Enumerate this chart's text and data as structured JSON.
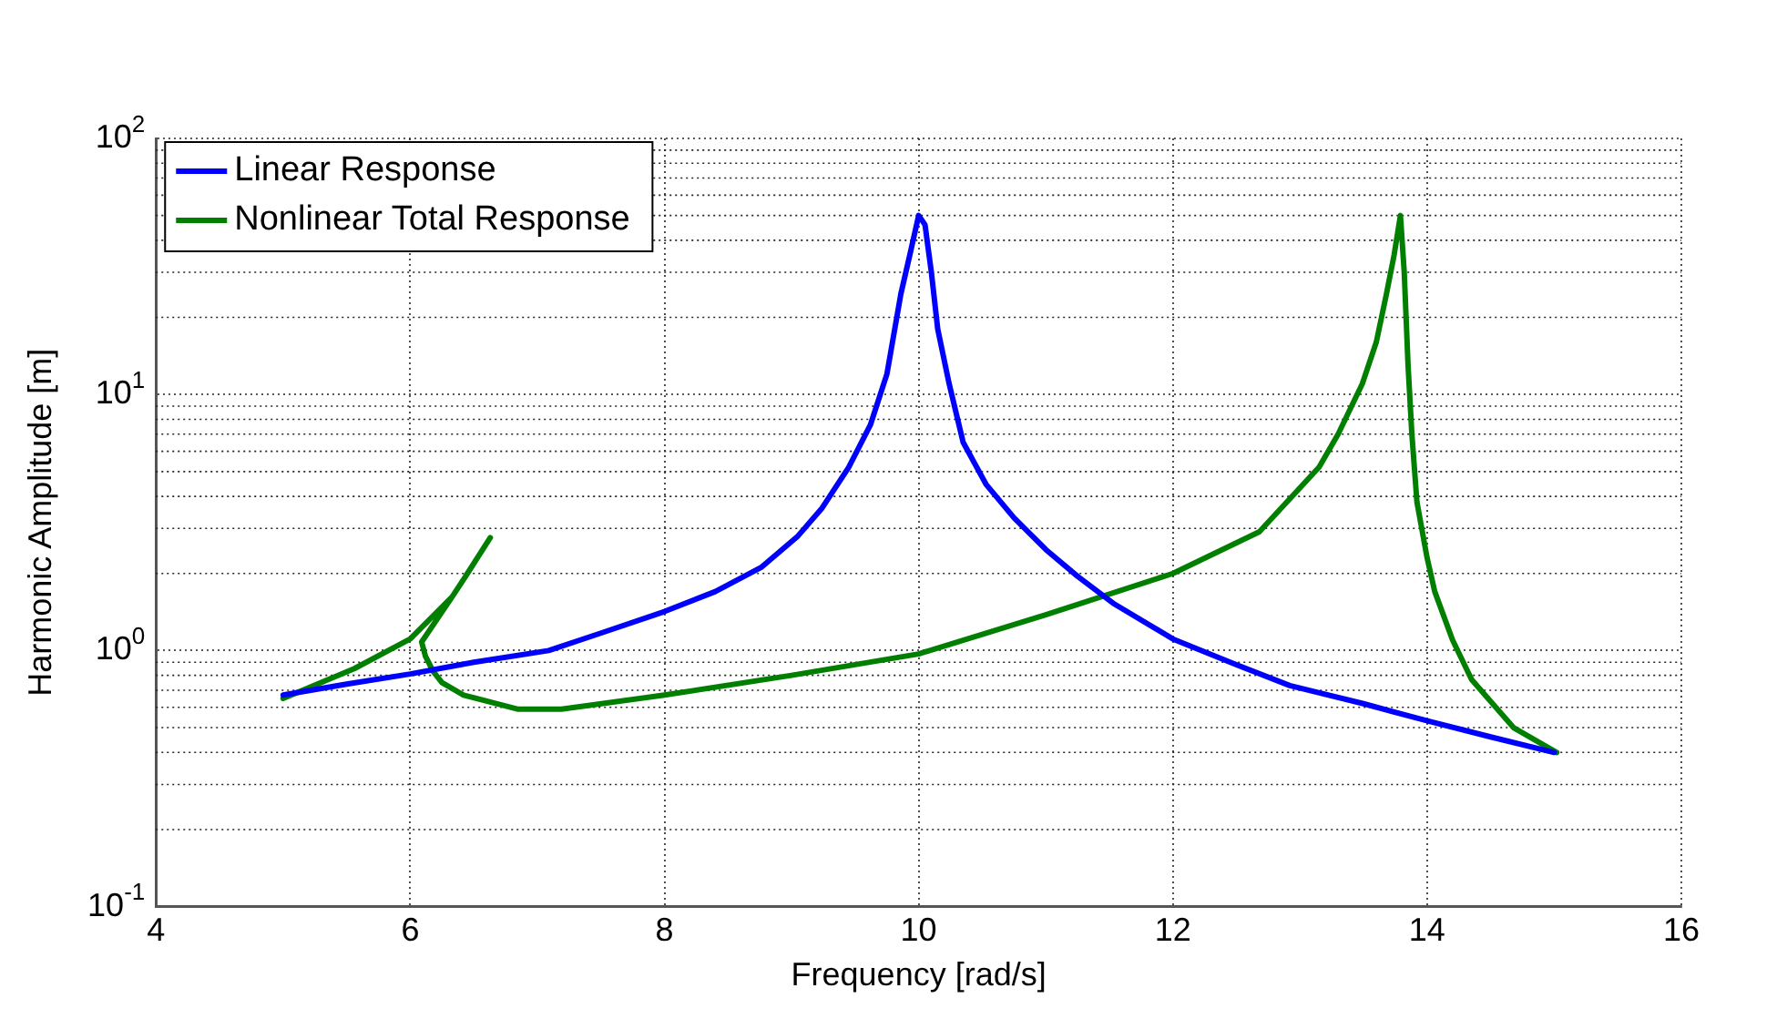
{
  "chart_data": {
    "type": "line",
    "xlabel": "Frequency [rad/s]",
    "ylabel": "Harmonic Amplitude [m]",
    "log": "y",
    "grid": true,
    "legend": "top left",
    "line_style": "solid",
    "marker": "none",
    "xlim": [
      4,
      16
    ],
    "xticks": [
      4,
      6,
      8,
      10,
      12,
      14,
      16
    ],
    "ylim": [
      0.1,
      100
    ],
    "yticks": [
      {
        "value": 0.1,
        "label": "10$^{-1}$"
      },
      {
        "value": 1,
        "label": "10$^{0}$"
      },
      {
        "value": 10,
        "label": "10$^{1}$"
      },
      {
        "value": 100,
        "label": "10$^{2}$"
      }
    ],
    "series": [
      {
        "name": "Linear Response",
        "color": "#0000ff",
        "x": [
          5,
          5.5,
          6,
          6.5,
          7.09,
          7.5,
          8,
          8.4,
          8.76,
          9.05,
          9.24,
          9.45,
          9.62,
          9.75,
          9.86,
          9.93,
          10,
          10.05,
          10.1,
          10.15,
          10.24,
          10.35,
          10.53,
          10.75,
          11,
          11.25,
          11.53,
          12,
          12.5,
          12.92,
          13.5,
          14.01,
          14.5,
          15
        ],
        "values": [
          0.67,
          0.74,
          0.81,
          0.9,
          1.0,
          1.17,
          1.42,
          1.7,
          2.11,
          2.8,
          3.6,
          5.2,
          7.6,
          12,
          24.7,
          35,
          50,
          46,
          30,
          18,
          11,
          6.5,
          4.46,
          3.3,
          2.48,
          1.95,
          1.53,
          1.11,
          0.88,
          0.73,
          0.62,
          0.53,
          0.46,
          0.4
        ]
      },
      {
        "name": "Nonlinear Total Response",
        "color": "#007f00",
        "x": [
          5,
          5.56,
          6,
          6.33,
          6.45,
          6.63,
          6.45,
          6.33,
          6.09,
          6.12,
          6.18,
          6.25,
          6.42,
          6.85,
          7.19,
          8,
          9,
          10,
          11,
          12,
          12.68,
          13.15,
          13.3,
          13.49,
          13.6,
          13.68,
          13.74,
          13.79,
          13.82,
          13.85,
          13.88,
          13.92,
          14,
          14.06,
          14.2,
          14.35,
          14.68,
          15.02
        ],
        "values": [
          0.65,
          0.85,
          1.11,
          1.62,
          2.0,
          2.76,
          2.0,
          1.62,
          1.08,
          0.95,
          0.83,
          0.75,
          0.67,
          0.59,
          0.59,
          0.67,
          0.8,
          0.97,
          1.38,
          2.0,
          2.91,
          5.2,
          7,
          11,
          16,
          24.7,
          35,
          50,
          30,
          13,
          7,
          3.8,
          2.3,
          1.7,
          1.1,
          0.77,
          0.5,
          0.4
        ]
      }
    ]
  }
}
